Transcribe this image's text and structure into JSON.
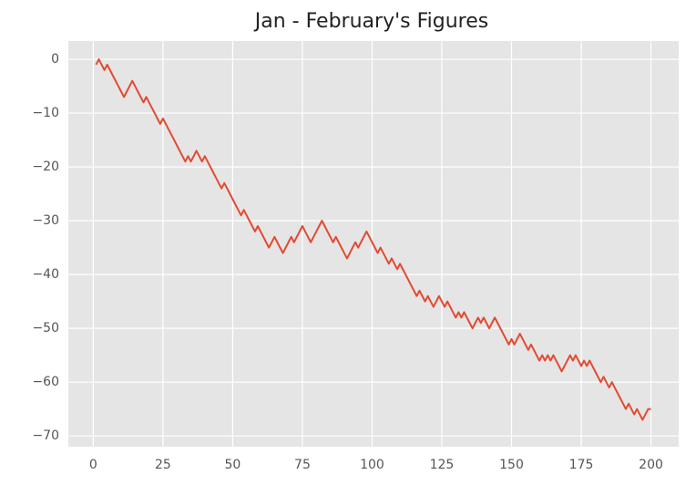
{
  "chart_data": {
    "type": "line",
    "title": "Jan - February's Figures",
    "x": [
      1,
      2,
      3,
      4,
      5,
      6,
      7,
      8,
      9,
      10,
      11,
      12,
      13,
      14,
      15,
      16,
      17,
      18,
      19,
      20,
      21,
      22,
      23,
      24,
      25,
      26,
      27,
      28,
      29,
      30,
      31,
      32,
      33,
      34,
      35,
      36,
      37,
      38,
      39,
      40,
      41,
      42,
      43,
      44,
      45,
      46,
      47,
      48,
      49,
      50,
      51,
      52,
      53,
      54,
      55,
      56,
      57,
      58,
      59,
      60,
      61,
      62,
      63,
      64,
      65,
      66,
      67,
      68,
      69,
      70,
      71,
      72,
      73,
      74,
      75,
      76,
      77,
      78,
      79,
      80,
      81,
      82,
      83,
      84,
      85,
      86,
      87,
      88,
      89,
      90,
      91,
      92,
      93,
      94,
      95,
      96,
      97,
      98,
      99,
      100,
      101,
      102,
      103,
      104,
      105,
      106,
      107,
      108,
      109,
      110,
      111,
      112,
      113,
      114,
      115,
      116,
      117,
      118,
      119,
      120,
      121,
      122,
      123,
      124,
      125,
      126,
      127,
      128,
      129,
      130,
      131,
      132,
      133,
      134,
      135,
      136,
      137,
      138,
      139,
      140,
      141,
      142,
      143,
      144,
      145,
      146,
      147,
      148,
      149,
      150,
      151,
      152,
      153,
      154,
      155,
      156,
      157,
      158,
      159,
      160,
      161,
      162,
      163,
      164,
      165,
      166,
      167,
      168,
      169,
      170,
      171,
      172,
      173,
      174,
      175,
      176,
      177,
      178,
      179,
      180,
      181,
      182,
      183,
      184,
      185,
      186,
      187,
      188,
      189,
      190,
      191,
      192,
      193,
      194,
      195,
      196,
      197,
      198,
      199,
      200
    ],
    "series": [
      {
        "color": "#e24a33",
        "values": [
          -1,
          0,
          -1,
          -2,
          -1,
          -2,
          -3,
          -4,
          -5,
          -6,
          -7,
          -6,
          -5,
          -4,
          -5,
          -6,
          -7,
          -8,
          -7,
          -8,
          -9,
          -10,
          -11,
          -12,
          -11,
          -12,
          -13,
          -14,
          -15,
          -16,
          -17,
          -18,
          -19,
          -18,
          -19,
          -18,
          -17,
          -18,
          -19,
          -18,
          -19,
          -20,
          -21,
          -22,
          -23,
          -24,
          -23,
          -24,
          -25,
          -26,
          -27,
          -28,
          -29,
          -28,
          -29,
          -30,
          -31,
          -32,
          -31,
          -32,
          -33,
          -34,
          -35,
          -34,
          -33,
          -34,
          -35,
          -36,
          -35,
          -34,
          -33,
          -34,
          -33,
          -32,
          -31,
          -32,
          -33,
          -34,
          -33,
          -32,
          -31,
          -30,
          -31,
          -32,
          -33,
          -34,
          -33,
          -34,
          -35,
          -36,
          -37,
          -36,
          -35,
          -34,
          -35,
          -34,
          -33,
          -32,
          -33,
          -34,
          -35,
          -36,
          -35,
          -36,
          -37,
          -38,
          -37,
          -38,
          -39,
          -38,
          -39,
          -40,
          -41,
          -42,
          -43,
          -44,
          -43,
          -44,
          -45,
          -44,
          -45,
          -46,
          -45,
          -44,
          -45,
          -46,
          -45,
          -46,
          -47,
          -48,
          -47,
          -48,
          -47,
          -48,
          -49,
          -50,
          -49,
          -48,
          -49,
          -48,
          -49,
          -50,
          -49,
          -48,
          -49,
          -50,
          -51,
          -52,
          -53,
          -52,
          -53,
          -52,
          -51,
          -52,
          -53,
          -54,
          -53,
          -54,
          -55,
          -56,
          -55,
          -56,
          -55,
          -56,
          -55,
          -56,
          -57,
          -58,
          -57,
          -56,
          -55,
          -56,
          -55,
          -56,
          -57,
          -56,
          -57,
          -56,
          -57,
          -58,
          -59,
          -60,
          -59,
          -60,
          -61,
          -60,
          -61,
          -62,
          -63,
          -64,
          -65,
          -64,
          -65,
          -66,
          -65,
          -66,
          -67,
          -66,
          -65,
          -65
        ]
      }
    ],
    "xlim": [
      -8.95,
      209.95
    ],
    "ylim": [
      -72,
      3.4
    ],
    "xticks": [
      0,
      25,
      50,
      75,
      100,
      125,
      150,
      175,
      200
    ],
    "yticks": [
      0,
      {
        "value": -10,
        "label": "−10"
      },
      {
        "value": -20,
        "label": "−20"
      },
      {
        "value": -30,
        "label": "−30"
      },
      {
        "value": -40,
        "label": "−40"
      },
      {
        "value": -50,
        "label": "−50"
      },
      {
        "value": -60,
        "label": "−60"
      },
      {
        "value": -70,
        "label": "−70"
      }
    ],
    "grid": true
  }
}
